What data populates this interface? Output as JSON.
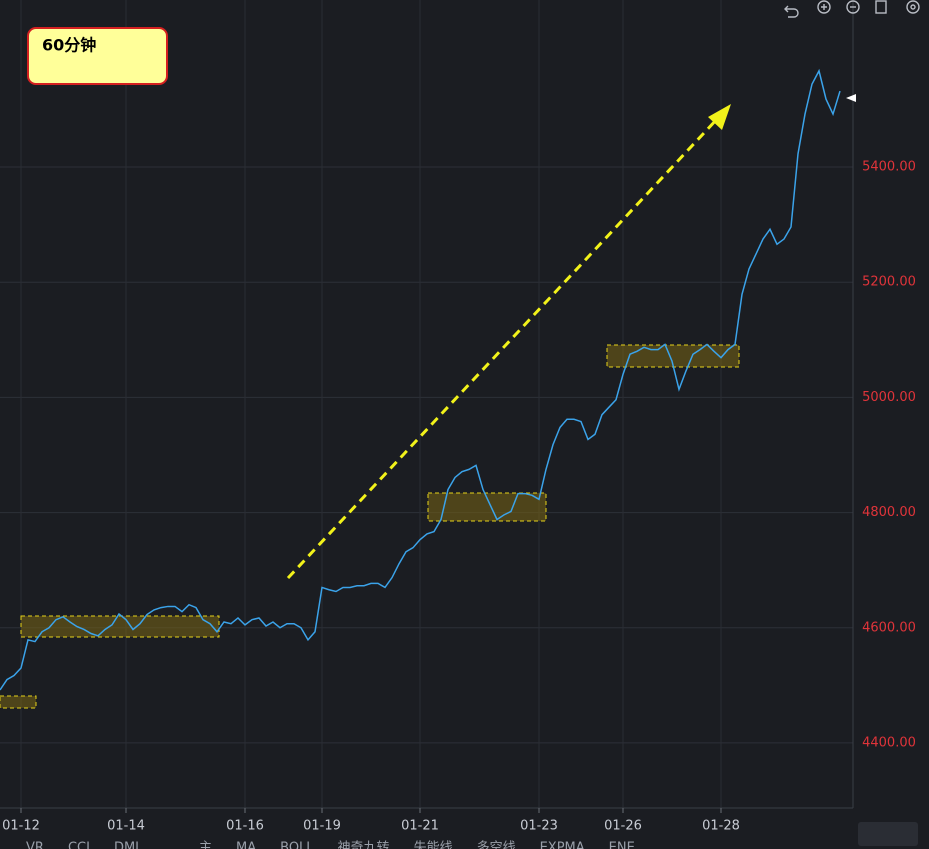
{
  "chart_data": {
    "type": "line",
    "annotation": "60分钟",
    "categories": [
      null,
      null,
      null,
      "01-12",
      null,
      null,
      null,
      null,
      null,
      null,
      null,
      null,
      null,
      null,
      null,
      null,
      null,
      null,
      "01-14",
      null,
      null,
      null,
      null,
      null,
      null,
      null,
      null,
      null,
      null,
      null,
      null,
      null,
      null,
      null,
      null,
      "01-16",
      null,
      null,
      null,
      null,
      null,
      null,
      null,
      null,
      null,
      null,
      "01-19",
      null,
      null,
      null,
      null,
      null,
      null,
      null,
      null,
      null,
      null,
      null,
      null,
      null,
      "01-21",
      null,
      null,
      null,
      null,
      null,
      null,
      null,
      null,
      null,
      null,
      null,
      null,
      null,
      null,
      null,
      null,
      "01-23",
      null,
      null,
      null,
      null,
      null,
      null,
      null,
      null,
      null,
      null,
      null,
      "01-26",
      null,
      null,
      null,
      null,
      null,
      null,
      null,
      null,
      null,
      null,
      null,
      null,
      null,
      "01-28",
      null,
      null,
      null,
      null,
      null,
      null,
      null,
      null,
      null,
      null,
      null,
      null,
      null,
      null,
      null,
      null,
      null
    ],
    "series": [
      {
        "color": "#3ba3ea",
        "values": [
          4492,
          4510,
          4517,
          4530,
          4579,
          4576,
          4593,
          4600,
          4614,
          4619,
          4610,
          4602,
          4597,
          4590,
          4586,
          4597,
          4605,
          4624,
          4614,
          4597,
          4607,
          4623,
          4631,
          4635,
          4637,
          4637,
          4628,
          4640,
          4635,
          4614,
          4607,
          4593,
          4610,
          4607,
          4617,
          4605,
          4614,
          4617,
          4603,
          4610,
          4600,
          4607,
          4607,
          4600,
          4579,
          4593,
          4670,
          4666,
          4663,
          4670,
          4670,
          4673,
          4673,
          4677,
          4677,
          4670,
          4687,
          4711,
          4732,
          4739,
          4753,
          4763,
          4767,
          4788,
          4840,
          4861,
          4871,
          4875,
          4882,
          4840,
          4814,
          4788,
          4796,
          4802,
          4833,
          4833,
          4830,
          4823,
          4875,
          4918,
          4948,
          4962,
          4962,
          4958,
          4927,
          4936,
          4970,
          4983,
          4996,
          5040,
          5075,
          5080,
          5087,
          5083,
          5083,
          5092,
          5063,
          5014,
          5046,
          5075,
          5083,
          5092,
          5080,
          5069,
          5083,
          5092,
          5179,
          5223,
          5249,
          5275,
          5292,
          5266,
          5275,
          5296,
          5423,
          5492,
          5544,
          5567,
          5518,
          5492,
          5532
        ]
      }
    ],
    "ylim": [
      4287,
      5638
    ],
    "yticks": [
      {
        "value": 4400,
        "label": "4400.00"
      },
      {
        "value": 4600,
        "label": "4600.00"
      },
      {
        "value": 4800,
        "label": "4800.00"
      },
      {
        "value": 5000,
        "label": "5000.00"
      },
      {
        "value": 5200,
        "label": "5200.00"
      },
      {
        "value": 5400,
        "label": "5400.00"
      }
    ],
    "grid": true,
    "tabs": [
      "VR",
      "CCI",
      "DMI",
      "主",
      "MA",
      "BOLL",
      "神奇九转",
      "失能线",
      "多空线",
      "EXPMA",
      "ENE"
    ]
  }
}
